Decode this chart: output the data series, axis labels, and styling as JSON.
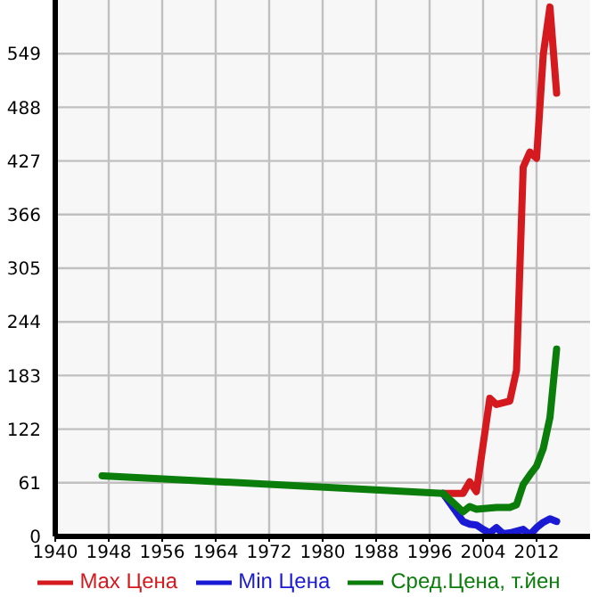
{
  "chart_data": {
    "type": "line",
    "legend": "bottom",
    "grid": true,
    "marker": "none",
    "line_style": "solid",
    "xlim": [
      1940,
      2020
    ],
    "xticks": [
      1940,
      1948,
      1956,
      1964,
      1972,
      1980,
      1988,
      1996,
      2004,
      2012
    ],
    "ylim": [
      0,
      610
    ],
    "yticks": [
      0,
      61,
      122,
      183,
      244,
      305,
      366,
      427,
      488,
      549
    ],
    "series": [
      {
        "name": "Max Цена",
        "color": "#d41a1f",
        "x": [
          1998,
          2001,
          2002,
          2003,
          2005,
          2006,
          2008,
          2009,
          2010,
          2011,
          2012,
          2013,
          2014,
          2015
        ],
        "values": [
          49,
          49,
          62,
          51,
          157,
          150,
          154,
          189,
          420,
          437,
          430,
          548,
          602,
          504
        ]
      },
      {
        "name": "Min Цена",
        "color": "#1a1ad4",
        "x": [
          1998,
          2001,
          2002,
          2003,
          2004,
          2005,
          2006,
          2007,
          2008,
          2009,
          2010,
          2011,
          2012,
          2013,
          2014,
          2015
        ],
        "values": [
          49,
          17,
          14,
          13,
          8,
          4,
          10,
          3,
          4,
          6,
          8,
          2,
          10,
          16,
          20,
          17
        ]
      },
      {
        "name": "Сред.Цена, т.йен",
        "color": "#0a7d0a",
        "x": [
          1947,
          1998,
          2001,
          2002,
          2003,
          2006,
          2008,
          2009,
          2010,
          2011,
          2012,
          2013,
          2014,
          2015
        ],
        "values": [
          69,
          49,
          28,
          34,
          31,
          33,
          33,
          36,
          59,
          70,
          80,
          100,
          135,
          213
        ]
      }
    ]
  }
}
